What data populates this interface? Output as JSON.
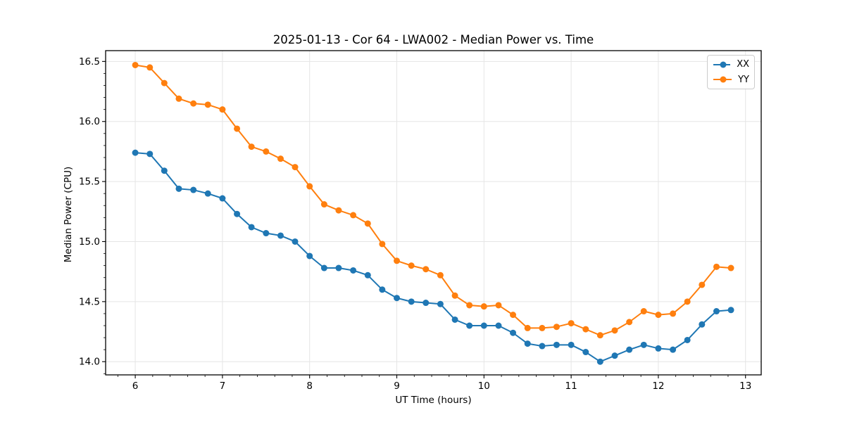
{
  "chart_data": {
    "type": "line",
    "title": "2025-01-13 - Cor 64 - LWA002 - Median Power vs. Time",
    "xlabel": "UT Time (hours)",
    "ylabel": "Median Power (CPU)",
    "x": [
      6.0,
      6.167,
      6.333,
      6.5,
      6.667,
      6.833,
      7.0,
      7.167,
      7.333,
      7.5,
      7.667,
      7.833,
      8.0,
      8.167,
      8.333,
      8.5,
      8.667,
      8.833,
      9.0,
      9.167,
      9.333,
      9.5,
      9.667,
      9.833,
      10.0,
      10.167,
      10.333,
      10.5,
      10.667,
      10.833,
      11.0,
      11.167,
      11.333,
      11.5,
      11.667,
      11.833,
      12.0,
      12.167,
      12.333,
      12.5,
      12.667,
      12.833
    ],
    "series": [
      {
        "name": "XX",
        "color": "#1f77b4",
        "values": [
          15.74,
          15.73,
          15.59,
          15.44,
          15.43,
          15.4,
          15.36,
          15.23,
          15.12,
          15.07,
          15.05,
          15.0,
          14.88,
          14.78,
          14.78,
          14.76,
          14.72,
          14.6,
          14.53,
          14.5,
          14.49,
          14.48,
          14.35,
          14.3,
          14.3,
          14.3,
          14.24,
          14.15,
          14.13,
          14.14,
          14.14,
          14.08,
          14.0,
          14.05,
          14.1,
          14.14,
          14.11,
          14.1,
          14.18,
          14.31,
          14.42,
          14.43
        ]
      },
      {
        "name": "YY",
        "color": "#ff7f0e",
        "values": [
          16.47,
          16.45,
          16.32,
          16.19,
          16.15,
          16.14,
          16.1,
          15.94,
          15.79,
          15.75,
          15.69,
          15.62,
          15.46,
          15.31,
          15.26,
          15.22,
          15.15,
          14.98,
          14.84,
          14.8,
          14.77,
          14.72,
          14.55,
          14.47,
          14.46,
          14.47,
          14.39,
          14.28,
          14.28,
          14.29,
          14.32,
          14.27,
          14.22,
          14.26,
          14.33,
          14.42,
          14.39,
          14.4,
          14.5,
          14.64,
          14.79,
          14.78
        ]
      }
    ],
    "xlim": [
      5.66,
      13.18
    ],
    "ylim": [
      13.89,
      16.59
    ],
    "xticks": [
      6,
      7,
      8,
      9,
      10,
      11,
      12,
      13
    ],
    "yticks": [
      14.0,
      14.5,
      15.0,
      15.5,
      16.0,
      16.5
    ],
    "x_minor_step": 0.2,
    "y_minor_step": 0.1,
    "grid": true,
    "grid_color": "#e5e5e5",
    "legend_position": "upper right",
    "marker": "circle"
  }
}
